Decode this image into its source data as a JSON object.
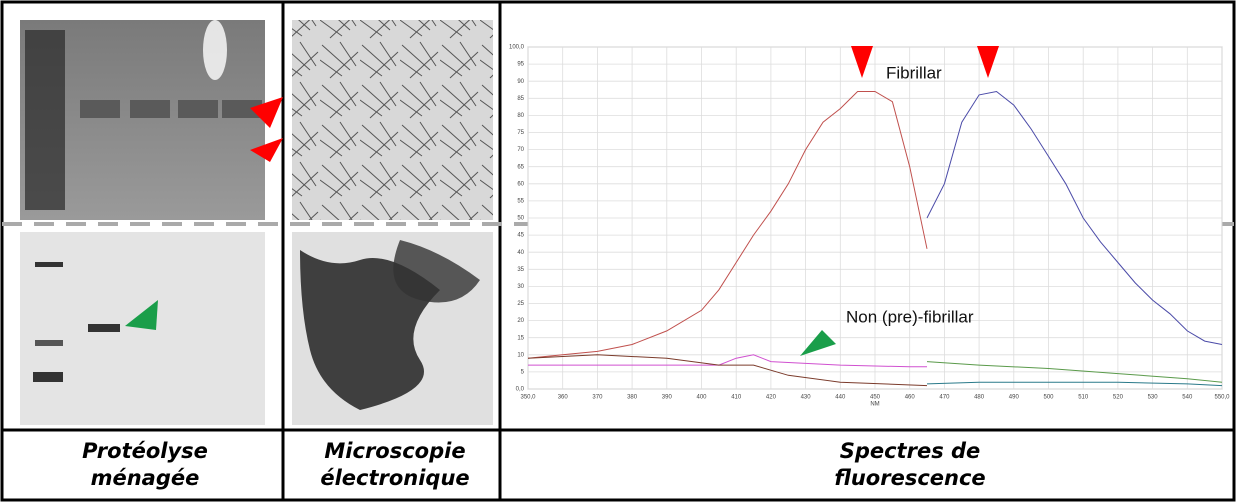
{
  "panels": [
    {
      "caption": "Protéolyse ménagée"
    },
    {
      "caption": "Microscopie électronique"
    },
    {
      "caption": "Spectres de fluorescence"
    }
  ],
  "chart_data": {
    "type": "line",
    "xlabel": "NM",
    "annotations": [
      "Fibrillar",
      "Non (pre)-fibrillar"
    ],
    "grid": true,
    "xlim": [
      350,
      550
    ],
    "ylim": [
      0,
      100
    ],
    "xticks": [
      {
        "value": 350,
        "label": "350,0"
      },
      360,
      370,
      380,
      390,
      400,
      410,
      420,
      430,
      440,
      450,
      460,
      470,
      480,
      490,
      500,
      510,
      520,
      530,
      540,
      {
        "value": 550,
        "label": "550,0"
      }
    ],
    "yticks": [
      {
        "value": 0,
        "label": "0,0"
      },
      5,
      10,
      15,
      20,
      25,
      30,
      35,
      40,
      45,
      50,
      55,
      60,
      65,
      70,
      75,
      80,
      85,
      90,
      95,
      {
        "value": 100,
        "label": "100,0"
      }
    ],
    "series": [
      {
        "color": "#c0504d",
        "x": [
          350,
          360,
          370,
          380,
          390,
          400,
          405,
          410,
          415,
          420,
          425,
          430,
          435,
          440,
          445,
          450,
          455,
          460,
          465
        ],
        "values": [
          9,
          10,
          11,
          13,
          17,
          23,
          29,
          37,
          45,
          52,
          60,
          70,
          78,
          82,
          87,
          87,
          84,
          65,
          41
        ]
      },
      {
        "color": "#4b4ba8",
        "x": [
          465,
          470,
          475,
          480,
          485,
          490,
          495,
          500,
          505,
          510,
          515,
          520,
          525,
          530,
          535,
          540,
          545,
          550
        ],
        "values": [
          50,
          60,
          78,
          86,
          87,
          83,
          76,
          68,
          60,
          50,
          43,
          37,
          31,
          26,
          22,
          17,
          14,
          13
        ]
      },
      {
        "color": "#d050d0",
        "x": [
          350,
          370,
          390,
          405,
          410,
          415,
          420,
          440,
          460,
          465
        ],
        "values": [
          7,
          7,
          7,
          7,
          9,
          10,
          8,
          7,
          6.5,
          6.5
        ]
      },
      {
        "color": "#7b3b2b",
        "x": [
          350,
          370,
          390,
          405,
          415,
          425,
          440,
          465
        ],
        "values": [
          9,
          10,
          9,
          7,
          7,
          4,
          2,
          1
        ]
      },
      {
        "color": "#5a9a4a",
        "x": [
          465,
          480,
          500,
          520,
          540,
          550
        ],
        "values": [
          8,
          7,
          6,
          4.5,
          3,
          2
        ]
      },
      {
        "color": "#2a7a8a",
        "x": [
          465,
          480,
          500,
          520,
          540,
          550
        ],
        "values": [
          1.5,
          2,
          2,
          2,
          1.5,
          1
        ]
      }
    ]
  }
}
